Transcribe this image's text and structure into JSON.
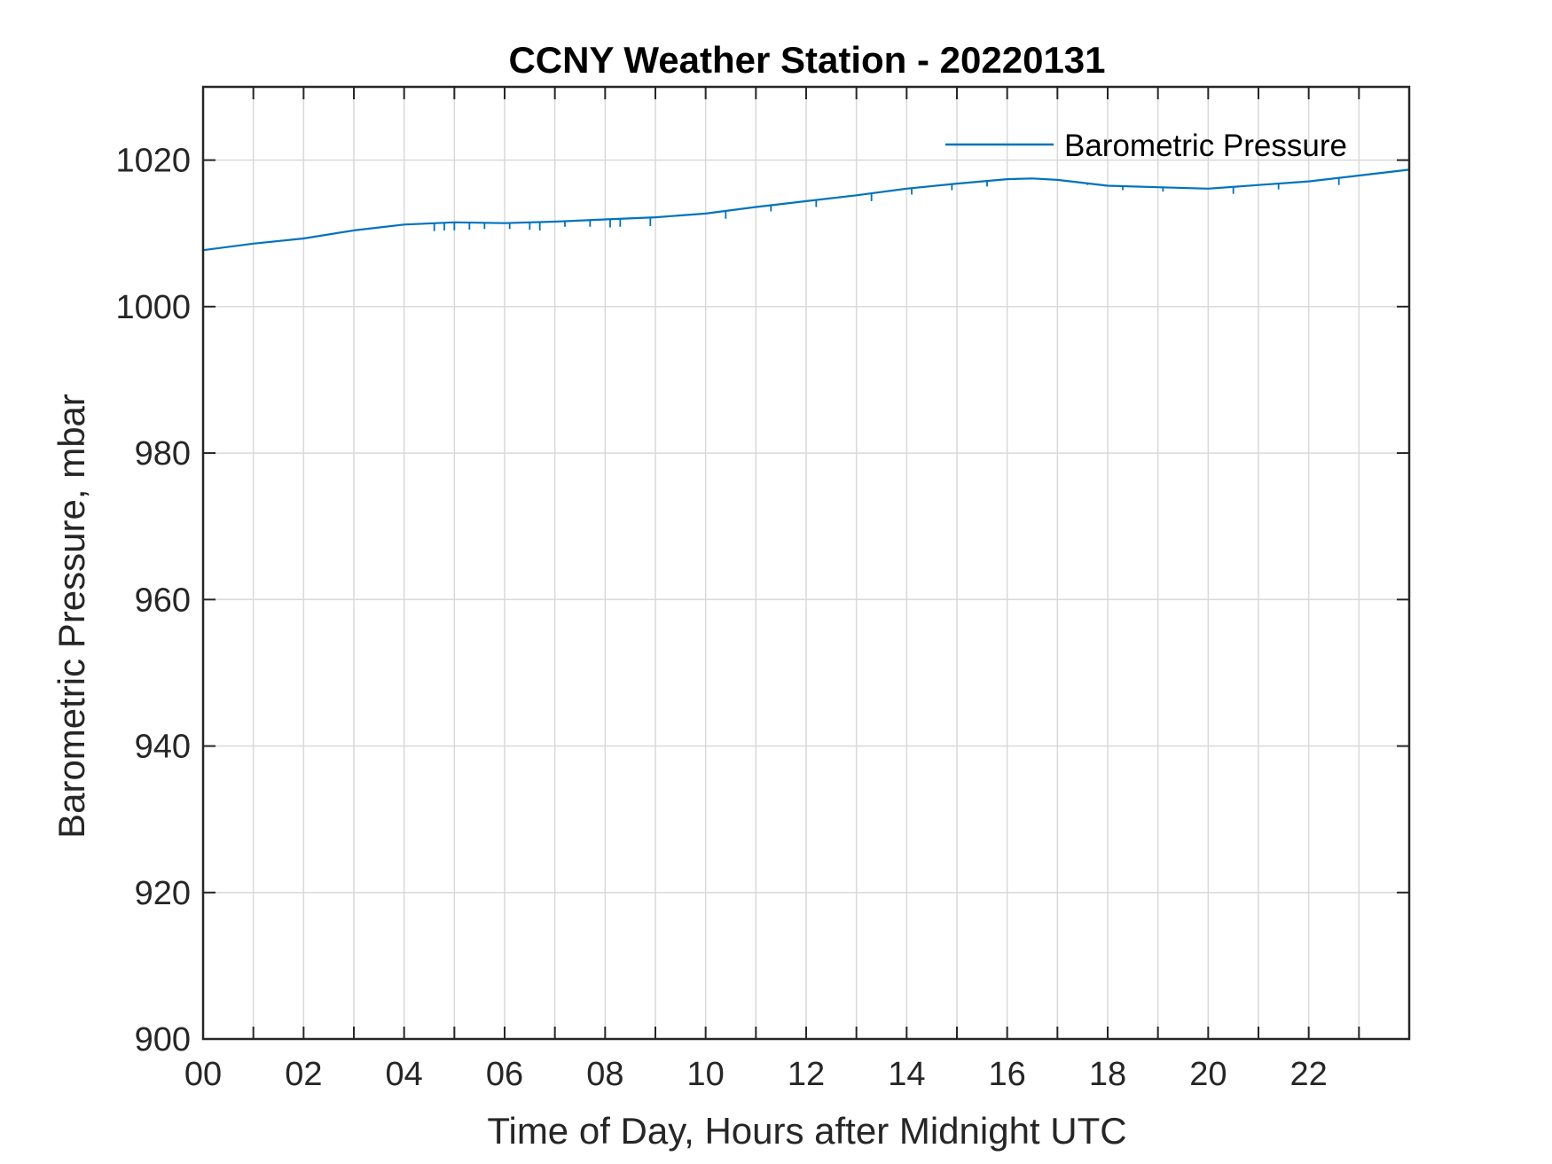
{
  "chart_data": {
    "type": "line",
    "title": "CCNY Weather Station - 20220131",
    "xlabel": "Time of Day, Hours after Midnight UTC",
    "ylabel": "Barometric Pressure, mbar",
    "xlim": [
      0,
      24
    ],
    "ylim": [
      900,
      1030
    ],
    "x_ticks": [
      0,
      2,
      4,
      6,
      8,
      10,
      12,
      14,
      16,
      18,
      20,
      22
    ],
    "x_tick_labels": [
      "00",
      "02",
      "04",
      "06",
      "08",
      "10",
      "12",
      "14",
      "16",
      "18",
      "20",
      "22"
    ],
    "x_grid_step": 1,
    "y_ticks": [
      900,
      920,
      940,
      960,
      980,
      1000,
      1020
    ],
    "y_tick_labels": [
      "900",
      "920",
      "940",
      "960",
      "980",
      "1000",
      "1020"
    ],
    "grid": true,
    "legend_position": "top-right",
    "series": [
      {
        "name": "Barometric Pressure",
        "color": "#0072BD",
        "x": [
          0,
          1,
          2,
          3,
          4,
          5,
          6,
          7,
          8,
          9,
          10,
          11,
          12,
          13,
          14,
          15,
          16,
          16.5,
          17,
          18,
          19,
          20,
          21,
          22,
          23,
          24
        ],
        "values": [
          1007.7,
          1008.6,
          1009.3,
          1010.4,
          1011.2,
          1011.5,
          1011.4,
          1011.6,
          1011.9,
          1012.2,
          1012.7,
          1013.6,
          1014.4,
          1015.2,
          1016.1,
          1016.8,
          1017.4,
          1017.5,
          1017.3,
          1016.5,
          1016.3,
          1016.1,
          1016.6,
          1017.1,
          1017.9,
          1018.7
        ],
        "dips": [
          {
            "x": 4.6,
            "value": 1010.3
          },
          {
            "x": 4.8,
            "value": 1010.4
          },
          {
            "x": 5.0,
            "value": 1010.4
          },
          {
            "x": 5.3,
            "value": 1010.5
          },
          {
            "x": 5.6,
            "value": 1010.6
          },
          {
            "x": 6.1,
            "value": 1010.6
          },
          {
            "x": 6.5,
            "value": 1010.5
          },
          {
            "x": 6.7,
            "value": 1010.4
          },
          {
            "x": 7.2,
            "value": 1010.9
          },
          {
            "x": 7.7,
            "value": 1010.9
          },
          {
            "x": 8.1,
            "value": 1010.8
          },
          {
            "x": 8.3,
            "value": 1010.9
          },
          {
            "x": 8.9,
            "value": 1011.0
          },
          {
            "x": 10.4,
            "value": 1012.0
          },
          {
            "x": 11.3,
            "value": 1013.0
          },
          {
            "x": 12.2,
            "value": 1013.6
          },
          {
            "x": 13.3,
            "value": 1014.4
          },
          {
            "x": 14.1,
            "value": 1015.3
          },
          {
            "x": 14.9,
            "value": 1015.9
          },
          {
            "x": 15.6,
            "value": 1016.4
          },
          {
            "x": 17.6,
            "value": 1016.6
          },
          {
            "x": 18.3,
            "value": 1015.9
          },
          {
            "x": 19.1,
            "value": 1015.7
          },
          {
            "x": 20.5,
            "value": 1015.4
          },
          {
            "x": 21.4,
            "value": 1016.0
          },
          {
            "x": 22.6,
            "value": 1016.6
          }
        ]
      }
    ]
  }
}
